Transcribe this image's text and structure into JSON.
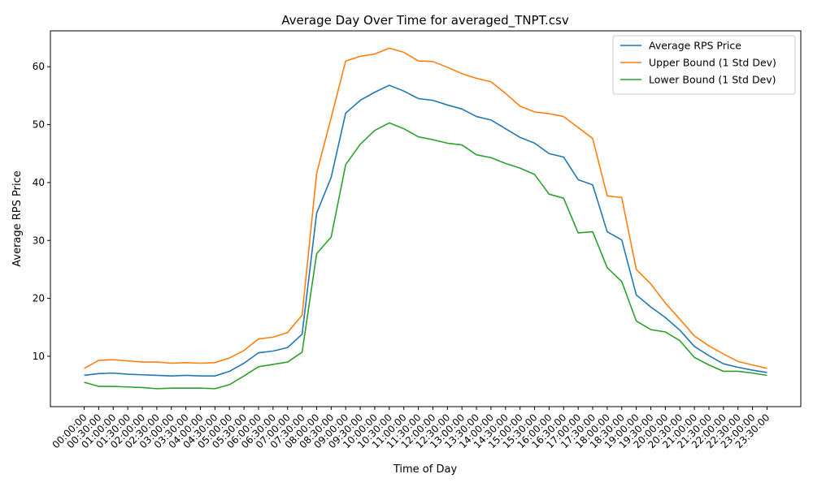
{
  "chart_data": {
    "type": "line",
    "title": "Average Day Over Time for averaged_TNPT.csv",
    "xlabel": "Time of Day",
    "ylabel": "Average RPS Price",
    "ylim": [
      1.3,
      66.2
    ],
    "yticks": [
      10,
      20,
      30,
      40,
      50,
      60
    ],
    "grid": false,
    "legend_position": "top-right",
    "categories": [
      "00:00:00",
      "00:30:00",
      "01:00:00",
      "01:30:00",
      "02:00:00",
      "02:30:00",
      "03:00:00",
      "03:30:00",
      "04:00:00",
      "04:30:00",
      "05:00:00",
      "05:30:00",
      "06:00:00",
      "06:30:00",
      "07:00:00",
      "07:30:00",
      "08:00:00",
      "08:30:00",
      "09:00:00",
      "09:30:00",
      "10:00:00",
      "10:30:00",
      "11:00:00",
      "11:30:00",
      "12:00:00",
      "12:30:00",
      "13:00:00",
      "13:30:00",
      "14:00:00",
      "14:30:00",
      "15:00:00",
      "15:30:00",
      "16:00:00",
      "16:30:00",
      "17:00:00",
      "17:30:00",
      "18:00:00",
      "18:30:00",
      "19:00:00",
      "19:30:00",
      "20:00:00",
      "20:30:00",
      "21:00:00",
      "21:30:00",
      "22:00:00",
      "22:30:00",
      "23:00:00",
      "23:30:00"
    ],
    "series": [
      {
        "name": "Average RPS Price",
        "color": "#1f77b4",
        "values": [
          6.7,
          7.0,
          7.1,
          6.9,
          6.8,
          6.7,
          6.6,
          6.7,
          6.6,
          6.6,
          7.4,
          8.8,
          10.6,
          10.9,
          11.5,
          13.8,
          34.7,
          40.9,
          52.0,
          54.2,
          55.6,
          56.8,
          55.8,
          54.5,
          54.2,
          53.4,
          52.7,
          51.4,
          50.8,
          49.3,
          47.8,
          46.8,
          45.0,
          44.4,
          40.5,
          39.6,
          31.5,
          30.1,
          20.6,
          18.5,
          16.7,
          14.5,
          11.7,
          10.1,
          8.7,
          8.1,
          7.6,
          7.2
        ]
      },
      {
        "name": "Upper Bound (1 Std Dev)",
        "color": "#ff7f0e",
        "values": [
          7.9,
          9.3,
          9.4,
          9.2,
          9.0,
          9.0,
          8.8,
          8.9,
          8.8,
          8.9,
          9.7,
          11.0,
          13.0,
          13.3,
          14.1,
          17.1,
          41.6,
          51.2,
          61.0,
          61.8,
          62.2,
          63.2,
          62.5,
          61.0,
          60.9,
          59.9,
          58.8,
          58.0,
          57.4,
          55.4,
          53.2,
          52.2,
          51.9,
          51.4,
          49.5,
          47.6,
          37.7,
          37.4,
          25.0,
          22.5,
          19.2,
          16.4,
          13.5,
          11.8,
          10.4,
          9.1,
          8.5,
          7.9
        ]
      },
      {
        "name": "Lower Bound (1 Std Dev)",
        "color": "#2ca02c",
        "values": [
          5.5,
          4.8,
          4.8,
          4.7,
          4.6,
          4.4,
          4.5,
          4.5,
          4.5,
          4.4,
          5.1,
          6.6,
          8.2,
          8.6,
          9.0,
          10.7,
          27.7,
          30.6,
          43.1,
          46.6,
          49.0,
          50.3,
          49.3,
          47.9,
          47.4,
          46.8,
          46.5,
          44.8,
          44.3,
          43.3,
          42.5,
          41.4,
          38.0,
          37.3,
          31.3,
          31.5,
          25.3,
          22.9,
          16.1,
          14.6,
          14.2,
          12.7,
          9.8,
          8.5,
          7.4,
          7.4,
          7.1,
          6.7
        ]
      }
    ]
  }
}
